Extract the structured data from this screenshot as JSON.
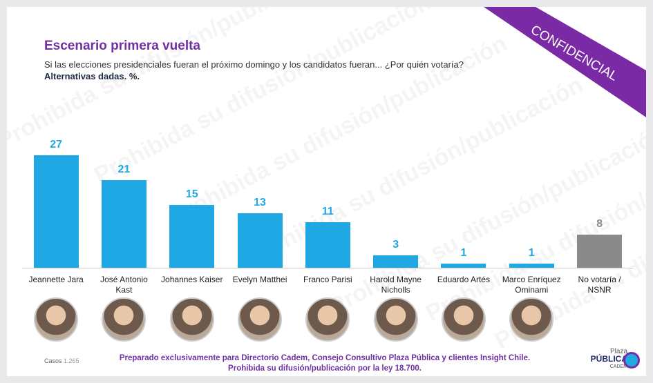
{
  "chart_data": {
    "type": "bar",
    "title": "Escenario primera vuelta",
    "subtitle": "Si las elecciones presidenciales fueran el próximo domingo y los candidatos fueran... ¿Por quién votaría?",
    "note": "Alternativas dadas. %.",
    "categories": [
      "Jeannette Jara",
      "José Antonio Kast",
      "Johannes Kaiser",
      "Evelyn Matthei",
      "Franco Parisi",
      "Harold Mayne Nicholls",
      "Eduardo Artés",
      "Marco Enríquez Ominami",
      "No votaría / NSNR"
    ],
    "values": [
      27,
      21,
      15,
      13,
      11,
      3,
      1,
      1,
      8
    ],
    "colors": [
      "#1fa8e3",
      "#1fa8e3",
      "#1fa8e3",
      "#1fa8e3",
      "#1fa8e3",
      "#1fa8e3",
      "#1fa8e3",
      "#1fa8e3",
      "#8a8a8a"
    ]
  },
  "stamp": "CONFIDENCIAL",
  "watermark": "Prohibida su difusión/publicación",
  "footer": {
    "cases_label": "Casos",
    "cases": "1.265",
    "lines": [
      "Preparado exclusivamente para Directorio Cadem, Consejo Consultivo Plaza Pública y clientes Insight Chile.",
      "Prohibida su difusión/publicación por la ley 18.700."
    ]
  },
  "logo": {
    "top": "Plaza",
    "main": "PÚBLICA",
    "sub": "CADEM"
  }
}
